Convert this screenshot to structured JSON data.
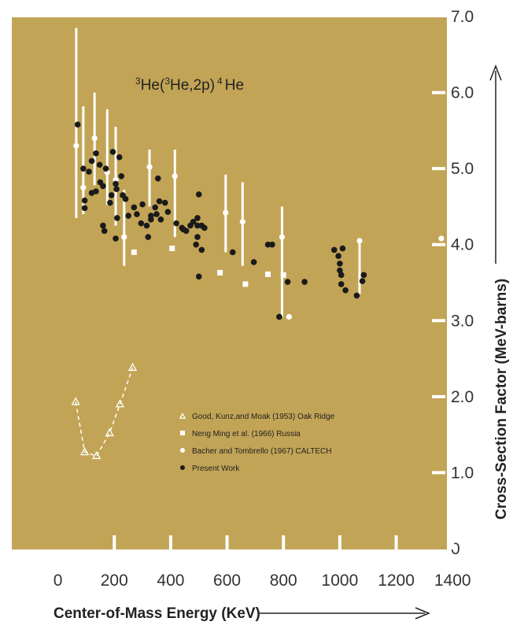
{
  "chart_data": {
    "type": "scatter",
    "title": "3He(3He,2p)4He",
    "title_parts": {
      "pre": "3",
      "a": "He(",
      "pre2": "3",
      "b": "He,2p)",
      "pre3": "4",
      "c": "He"
    },
    "xlabel": "Center-of-Mass Energy (KeV)",
    "ylabel": "Cross-Section Factor (MeV-barns)",
    "xlim": [
      0,
      1500
    ],
    "ylim": [
      0,
      7.0
    ],
    "x_ticks": [
      "0",
      "200",
      "400",
      "600",
      "800",
      "1000",
      "1200",
      "1400"
    ],
    "y_ticks": [
      "0",
      "1.0",
      "2.0",
      "3.0",
      "4.0",
      "5.0",
      "6.0",
      "7.0"
    ],
    "colors": {
      "plot_background": "#c2a456",
      "present_work": "#1a1a1a",
      "open_markers": "#ffffff"
    },
    "legend": {
      "placement": "lower-right",
      "entries": [
        "Good, Kunz,and Moak (1953) Oak Ridge",
        "Neng Ming et al. (1966) Russia",
        "Bacher and Tombrello (1967) CALTECH",
        "Present Work"
      ]
    },
    "series": [
      {
        "name": "Good, Kunz,and Moak (1953) Oak Ridge",
        "marker": "triangle",
        "connected": true,
        "points": [
          [
            63,
            1.93
          ],
          [
            95,
            1.27
          ],
          [
            137,
            1.22
          ],
          [
            183,
            1.52
          ],
          [
            220,
            1.9
          ],
          [
            265,
            2.38
          ]
        ]
      },
      {
        "name": "Neng Ming et al. (1966) Russia",
        "marker": "square",
        "points": [
          [
            270,
            3.9
          ],
          [
            405,
            3.95
          ],
          [
            575,
            3.63
          ],
          [
            665,
            3.48
          ],
          [
            745,
            3.61
          ],
          [
            800,
            3.6
          ]
        ]
      },
      {
        "name": "Bacher and Tombrello (1967) CALTECH",
        "marker": "circle-open",
        "points": [
          {
            "x": 65,
            "y": 5.3,
            "ylo": 4.35,
            "yhi": 6.85
          },
          {
            "x": 90,
            "y": 4.75,
            "ylo": 4.4,
            "yhi": 5.82
          },
          {
            "x": 130,
            "y": 5.4,
            "ylo": 4.78,
            "yhi": 6.0
          },
          {
            "x": 175,
            "y": 4.95,
            "ylo": 4.52,
            "yhi": 5.78
          },
          {
            "x": 205,
            "y": 4.85,
            "ylo": 4.25,
            "yhi": 5.55
          },
          {
            "x": 235,
            "y": 4.1,
            "ylo": 3.72,
            "yhi": 4.72
          },
          {
            "x": 325,
            "y": 5.02,
            "ylo": 4.5,
            "yhi": 5.25
          },
          {
            "x": 415,
            "y": 4.9,
            "ylo": 4.1,
            "yhi": 5.25
          },
          {
            "x": 595,
            "y": 4.42,
            "ylo": 3.9,
            "yhi": 4.92
          },
          {
            "x": 655,
            "y": 4.3,
            "ylo": 3.72,
            "yhi": 4.82
          },
          {
            "x": 795,
            "y": 4.1,
            "ylo": 3.05,
            "yhi": 4.5
          },
          {
            "x": 820,
            "y": 3.05
          },
          {
            "x": 1070,
            "y": 4.05,
            "ylo": 3.35,
            "yhi": 4.05
          },
          {
            "x": 1360,
            "y": 4.08
          },
          {
            "x": 1395,
            "y": 4.17
          }
        ]
      },
      {
        "name": "Present Work",
        "marker": "circle-filled",
        "points": [
          [
            70,
            5.58
          ],
          [
            90,
            5.0
          ],
          [
            95,
            4.58
          ],
          [
            95,
            4.48
          ],
          [
            110,
            4.96
          ],
          [
            120,
            4.68
          ],
          [
            120,
            5.1
          ],
          [
            135,
            5.2
          ],
          [
            135,
            4.7
          ],
          [
            148,
            5.05
          ],
          [
            150,
            4.82
          ],
          [
            160,
            4.77
          ],
          [
            160,
            4.25
          ],
          [
            165,
            4.18
          ],
          [
            170,
            5.0
          ],
          [
            185,
            4.55
          ],
          [
            190,
            4.65
          ],
          [
            195,
            5.22
          ],
          [
            205,
            4.08
          ],
          [
            205,
            4.8
          ],
          [
            208,
            4.73
          ],
          [
            210,
            4.35
          ],
          [
            218,
            5.15
          ],
          [
            225,
            4.9
          ],
          [
            230,
            4.65
          ],
          [
            240,
            4.6
          ],
          [
            250,
            4.38
          ],
          [
            270,
            4.49
          ],
          [
            280,
            4.4
          ],
          [
            295,
            4.28
          ],
          [
            300,
            4.53
          ],
          [
            315,
            4.25
          ],
          [
            320,
            4.1
          ],
          [
            330,
            4.38
          ],
          [
            330,
            4.33
          ],
          [
            345,
            4.49
          ],
          [
            350,
            4.4
          ],
          [
            355,
            4.87
          ],
          [
            360,
            4.57
          ],
          [
            365,
            4.33
          ],
          [
            380,
            4.55
          ],
          [
            390,
            4.43
          ],
          [
            420,
            4.28
          ],
          [
            440,
            4.22
          ],
          [
            445,
            4.2
          ],
          [
            455,
            4.18
          ],
          [
            470,
            4.25
          ],
          [
            480,
            4.3
          ],
          [
            490,
            4.0
          ],
          [
            495,
            4.1
          ],
          [
            495,
            4.25
          ],
          [
            495,
            4.35
          ],
          [
            500,
            3.58
          ],
          [
            500,
            4.66
          ],
          [
            510,
            3.93
          ],
          [
            510,
            4.25
          ],
          [
            520,
            4.22
          ],
          [
            620,
            3.9
          ],
          [
            695,
            3.77
          ],
          [
            745,
            4.0
          ],
          [
            760,
            4.0
          ],
          [
            785,
            3.05
          ],
          [
            815,
            3.51
          ],
          [
            875,
            3.51
          ],
          [
            980,
            3.93
          ],
          [
            995,
            3.85
          ],
          [
            1000,
            3.75
          ],
          [
            1000,
            3.66
          ],
          [
            1005,
            3.6
          ],
          [
            1005,
            3.48
          ],
          [
            1010,
            3.95
          ],
          [
            1020,
            3.4
          ],
          [
            1060,
            3.33
          ],
          [
            1080,
            3.52
          ],
          [
            1085,
            3.6
          ]
        ]
      }
    ]
  }
}
